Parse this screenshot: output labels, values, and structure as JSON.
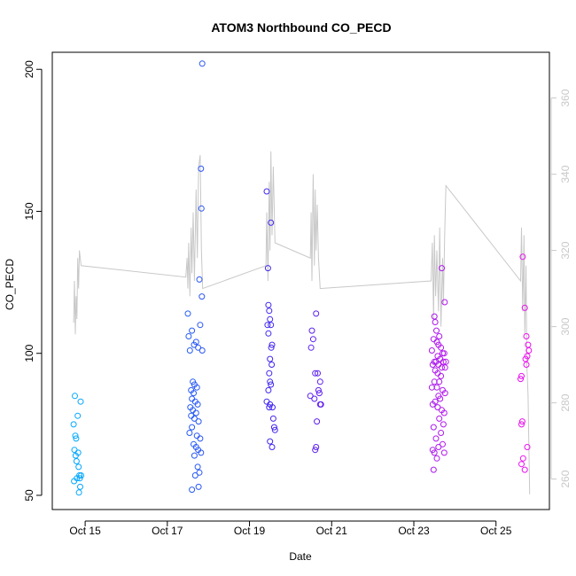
{
  "chart_data": {
    "type": "scatter",
    "title": "ATOM3 Northbound CO_PECD",
    "xlabel": "Date",
    "ylabel": "CO_PECD",
    "x_ticks": [
      "Oct 15",
      "Oct 17",
      "Oct 19",
      "Oct 21",
      "Oct 23",
      "Oct 25"
    ],
    "y_ticks": [
      50,
      100,
      150,
      200
    ],
    "y2_ticks": [
      260,
      280,
      300,
      320,
      340,
      360
    ],
    "xlim_days": [
      14.2,
      26.3
    ],
    "ylim": [
      45,
      206
    ],
    "y2lim": [
      252,
      372
    ],
    "grid": false,
    "colors": {
      "point_start": "#00aaff",
      "point_mid": "#4422ee",
      "point_end": "#ee11ee",
      "line": "#c8c8c8",
      "right_axis": "#c8c8c8"
    },
    "points": [
      {
        "x": 14.75,
        "y": 85
      },
      {
        "x": 14.72,
        "y": 75
      },
      {
        "x": 14.76,
        "y": 71
      },
      {
        "x": 14.78,
        "y": 70
      },
      {
        "x": 14.74,
        "y": 66
      },
      {
        "x": 14.77,
        "y": 64
      },
      {
        "x": 14.79,
        "y": 62
      },
      {
        "x": 14.73,
        "y": 55
      },
      {
        "x": 14.8,
        "y": 56
      },
      {
        "x": 14.82,
        "y": 78
      },
      {
        "x": 14.83,
        "y": 65
      },
      {
        "x": 14.84,
        "y": 60
      },
      {
        "x": 14.86,
        "y": 57
      },
      {
        "x": 14.87,
        "y": 56
      },
      {
        "x": 14.88,
        "y": 53
      },
      {
        "x": 14.85,
        "y": 51
      },
      {
        "x": 14.89,
        "y": 83
      },
      {
        "x": 14.9,
        "y": 57
      },
      {
        "x": 17.85,
        "y": 202
      },
      {
        "x": 17.82,
        "y": 165
      },
      {
        "x": 17.83,
        "y": 151
      },
      {
        "x": 17.78,
        "y": 126
      },
      {
        "x": 17.84,
        "y": 120
      },
      {
        "x": 17.5,
        "y": 114
      },
      {
        "x": 17.8,
        "y": 110
      },
      {
        "x": 17.6,
        "y": 108
      },
      {
        "x": 17.52,
        "y": 106
      },
      {
        "x": 17.7,
        "y": 104
      },
      {
        "x": 17.65,
        "y": 103
      },
      {
        "x": 17.75,
        "y": 102
      },
      {
        "x": 17.55,
        "y": 101
      },
      {
        "x": 17.85,
        "y": 101
      },
      {
        "x": 17.62,
        "y": 90
      },
      {
        "x": 17.66,
        "y": 89
      },
      {
        "x": 17.72,
        "y": 88
      },
      {
        "x": 17.58,
        "y": 87
      },
      {
        "x": 17.64,
        "y": 86
      },
      {
        "x": 17.6,
        "y": 84
      },
      {
        "x": 17.68,
        "y": 83
      },
      {
        "x": 17.74,
        "y": 82
      },
      {
        "x": 17.56,
        "y": 81
      },
      {
        "x": 17.62,
        "y": 80
      },
      {
        "x": 17.7,
        "y": 79
      },
      {
        "x": 17.58,
        "y": 78
      },
      {
        "x": 17.66,
        "y": 77
      },
      {
        "x": 17.76,
        "y": 76
      },
      {
        "x": 17.6,
        "y": 74
      },
      {
        "x": 17.54,
        "y": 72
      },
      {
        "x": 17.72,
        "y": 71
      },
      {
        "x": 17.8,
        "y": 70
      },
      {
        "x": 17.64,
        "y": 68
      },
      {
        "x": 17.7,
        "y": 67
      },
      {
        "x": 17.75,
        "y": 66
      },
      {
        "x": 17.82,
        "y": 65
      },
      {
        "x": 17.66,
        "y": 64
      },
      {
        "x": 17.74,
        "y": 60
      },
      {
        "x": 17.78,
        "y": 58
      },
      {
        "x": 17.68,
        "y": 57
      },
      {
        "x": 17.76,
        "y": 53
      },
      {
        "x": 17.6,
        "y": 52
      },
      {
        "x": 19.42,
        "y": 157
      },
      {
        "x": 19.52,
        "y": 146
      },
      {
        "x": 19.45,
        "y": 130
      },
      {
        "x": 19.46,
        "y": 117
      },
      {
        "x": 19.48,
        "y": 115
      },
      {
        "x": 19.5,
        "y": 112
      },
      {
        "x": 19.44,
        "y": 110
      },
      {
        "x": 19.52,
        "y": 110
      },
      {
        "x": 19.46,
        "y": 107
      },
      {
        "x": 19.55,
        "y": 103
      },
      {
        "x": 19.53,
        "y": 102
      },
      {
        "x": 19.5,
        "y": 98
      },
      {
        "x": 19.54,
        "y": 96
      },
      {
        "x": 19.48,
        "y": 93
      },
      {
        "x": 19.5,
        "y": 90
      },
      {
        "x": 19.52,
        "y": 89
      },
      {
        "x": 19.46,
        "y": 87
      },
      {
        "x": 19.42,
        "y": 83
      },
      {
        "x": 19.5,
        "y": 82
      },
      {
        "x": 19.56,
        "y": 81
      },
      {
        "x": 19.48,
        "y": 81
      },
      {
        "x": 19.58,
        "y": 77
      },
      {
        "x": 19.6,
        "y": 74
      },
      {
        "x": 19.62,
        "y": 73
      },
      {
        "x": 19.5,
        "y": 69
      },
      {
        "x": 19.55,
        "y": 67
      },
      {
        "x": 20.62,
        "y": 114
      },
      {
        "x": 20.52,
        "y": 108
      },
      {
        "x": 20.55,
        "y": 105
      },
      {
        "x": 20.5,
        "y": 102
      },
      {
        "x": 20.6,
        "y": 93
      },
      {
        "x": 20.66,
        "y": 93
      },
      {
        "x": 20.72,
        "y": 90
      },
      {
        "x": 20.68,
        "y": 87
      },
      {
        "x": 20.7,
        "y": 86
      },
      {
        "x": 20.48,
        "y": 85
      },
      {
        "x": 20.58,
        "y": 84
      },
      {
        "x": 20.74,
        "y": 82
      },
      {
        "x": 20.72,
        "y": 82
      },
      {
        "x": 20.64,
        "y": 76
      },
      {
        "x": 20.62,
        "y": 67
      },
      {
        "x": 20.6,
        "y": 66
      },
      {
        "x": 23.68,
        "y": 130
      },
      {
        "x": 23.75,
        "y": 118
      },
      {
        "x": 23.5,
        "y": 113
      },
      {
        "x": 23.52,
        "y": 111
      },
      {
        "x": 23.55,
        "y": 108
      },
      {
        "x": 23.62,
        "y": 106
      },
      {
        "x": 23.48,
        "y": 105
      },
      {
        "x": 23.56,
        "y": 104
      },
      {
        "x": 23.6,
        "y": 103
      },
      {
        "x": 23.66,
        "y": 102
      },
      {
        "x": 23.44,
        "y": 101
      },
      {
        "x": 23.7,
        "y": 100
      },
      {
        "x": 23.74,
        "y": 100
      },
      {
        "x": 23.58,
        "y": 99
      },
      {
        "x": 23.64,
        "y": 98
      },
      {
        "x": 23.5,
        "y": 97
      },
      {
        "x": 23.54,
        "y": 97
      },
      {
        "x": 23.72,
        "y": 97
      },
      {
        "x": 23.78,
        "y": 97
      },
      {
        "x": 23.46,
        "y": 96
      },
      {
        "x": 23.6,
        "y": 96
      },
      {
        "x": 23.68,
        "y": 95
      },
      {
        "x": 23.76,
        "y": 95
      },
      {
        "x": 23.52,
        "y": 94
      },
      {
        "x": 23.58,
        "y": 93
      },
      {
        "x": 23.66,
        "y": 92
      },
      {
        "x": 23.5,
        "y": 90
      },
      {
        "x": 23.62,
        "y": 90
      },
      {
        "x": 23.44,
        "y": 88
      },
      {
        "x": 23.56,
        "y": 88
      },
      {
        "x": 23.7,
        "y": 87
      },
      {
        "x": 23.76,
        "y": 86
      },
      {
        "x": 23.6,
        "y": 85
      },
      {
        "x": 23.64,
        "y": 84
      },
      {
        "x": 23.52,
        "y": 83
      },
      {
        "x": 23.46,
        "y": 82
      },
      {
        "x": 23.58,
        "y": 81
      },
      {
        "x": 23.68,
        "y": 80
      },
      {
        "x": 23.74,
        "y": 79
      },
      {
        "x": 23.62,
        "y": 77
      },
      {
        "x": 23.72,
        "y": 75
      },
      {
        "x": 23.48,
        "y": 74
      },
      {
        "x": 23.66,
        "y": 72
      },
      {
        "x": 23.54,
        "y": 70
      },
      {
        "x": 23.7,
        "y": 68
      },
      {
        "x": 23.6,
        "y": 67
      },
      {
        "x": 23.46,
        "y": 66
      },
      {
        "x": 23.5,
        "y": 65
      },
      {
        "x": 23.74,
        "y": 65
      },
      {
        "x": 23.56,
        "y": 63
      },
      {
        "x": 23.48,
        "y": 59
      },
      {
        "x": 25.65,
        "y": 134
      },
      {
        "x": 25.7,
        "y": 116
      },
      {
        "x": 25.74,
        "y": 106
      },
      {
        "x": 25.78,
        "y": 103
      },
      {
        "x": 25.8,
        "y": 101
      },
      {
        "x": 25.76,
        "y": 99
      },
      {
        "x": 25.72,
        "y": 98
      },
      {
        "x": 25.74,
        "y": 96
      },
      {
        "x": 25.62,
        "y": 92
      },
      {
        "x": 25.6,
        "y": 91
      },
      {
        "x": 25.64,
        "y": 76
      },
      {
        "x": 25.62,
        "y": 75
      },
      {
        "x": 25.76,
        "y": 67
      },
      {
        "x": 25.66,
        "y": 63
      },
      {
        "x": 25.62,
        "y": 61
      },
      {
        "x": 25.7,
        "y": 59
      }
    ],
    "line_series": [
      {
        "x": 14.72,
        "y2": 301
      },
      {
        "x": 14.74,
        "y2": 312
      },
      {
        "x": 14.76,
        "y2": 298
      },
      {
        "x": 14.78,
        "y2": 308
      },
      {
        "x": 14.8,
        "y2": 302
      },
      {
        "x": 14.82,
        "y2": 318
      },
      {
        "x": 14.84,
        "y2": 310
      },
      {
        "x": 14.86,
        "y2": 320
      },
      {
        "x": 14.9,
        "y2": 316
      },
      {
        "x": 17.45,
        "y2": 313
      },
      {
        "x": 17.48,
        "y2": 318
      },
      {
        "x": 17.5,
        "y2": 310
      },
      {
        "x": 17.52,
        "y2": 322
      },
      {
        "x": 17.55,
        "y2": 308
      },
      {
        "x": 17.58,
        "y2": 326
      },
      {
        "x": 17.6,
        "y2": 314
      },
      {
        "x": 17.63,
        "y2": 330
      },
      {
        "x": 17.66,
        "y2": 312
      },
      {
        "x": 17.7,
        "y2": 336
      },
      {
        "x": 17.73,
        "y2": 318
      },
      {
        "x": 17.76,
        "y2": 342
      },
      {
        "x": 17.8,
        "y2": 345
      },
      {
        "x": 17.83,
        "y2": 320
      },
      {
        "x": 17.86,
        "y2": 310
      },
      {
        "x": 19.4,
        "y2": 316
      },
      {
        "x": 19.42,
        "y2": 330
      },
      {
        "x": 19.45,
        "y2": 312
      },
      {
        "x": 19.48,
        "y2": 338
      },
      {
        "x": 19.5,
        "y2": 320
      },
      {
        "x": 19.52,
        "y2": 346
      },
      {
        "x": 19.55,
        "y2": 324
      },
      {
        "x": 19.58,
        "y2": 342
      },
      {
        "x": 19.62,
        "y2": 322
      },
      {
        "x": 20.48,
        "y2": 318
      },
      {
        "x": 20.5,
        "y2": 330
      },
      {
        "x": 20.52,
        "y2": 312
      },
      {
        "x": 20.55,
        "y2": 340
      },
      {
        "x": 20.58,
        "y2": 316
      },
      {
        "x": 20.6,
        "y2": 336
      },
      {
        "x": 20.62,
        "y2": 320
      },
      {
        "x": 20.65,
        "y2": 332
      },
      {
        "x": 20.68,
        "y2": 318
      },
      {
        "x": 20.72,
        "y2": 310
      },
      {
        "x": 23.42,
        "y2": 312
      },
      {
        "x": 23.45,
        "y2": 322
      },
      {
        "x": 23.48,
        "y2": 302
      },
      {
        "x": 23.5,
        "y2": 324
      },
      {
        "x": 23.53,
        "y2": 308
      },
      {
        "x": 23.56,
        "y2": 320
      },
      {
        "x": 23.6,
        "y2": 304
      },
      {
        "x": 23.63,
        "y2": 326
      },
      {
        "x": 23.66,
        "y2": 300
      },
      {
        "x": 23.7,
        "y2": 318
      },
      {
        "x": 23.72,
        "y2": 306
      },
      {
        "x": 23.75,
        "y2": 324
      },
      {
        "x": 23.78,
        "y2": 337
      },
      {
        "x": 25.6,
        "y2": 312
      },
      {
        "x": 25.62,
        "y2": 326
      },
      {
        "x": 25.65,
        "y2": 304
      },
      {
        "x": 25.68,
        "y2": 324
      },
      {
        "x": 25.7,
        "y2": 298
      },
      {
        "x": 25.73,
        "y2": 316
      },
      {
        "x": 25.75,
        "y2": 290
      },
      {
        "x": 25.78,
        "y2": 282
      },
      {
        "x": 25.82,
        "y2": 256
      }
    ]
  }
}
